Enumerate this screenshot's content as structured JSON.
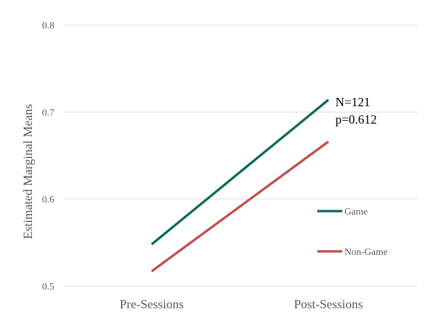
{
  "chart_data": {
    "type": "line",
    "title": "",
    "xlabel": "",
    "ylabel": "Estimated Marginal Means",
    "categories": [
      "Pre-Sessions",
      "Post-Sessions"
    ],
    "series": [
      {
        "name": "Game",
        "values": [
          0.548,
          0.714
        ],
        "color": "#0F6B5C"
      },
      {
        "name": "Non-Game",
        "values": [
          0.517,
          0.666
        ],
        "color": "#C0504D"
      }
    ],
    "ylim": [
      0.5,
      0.8
    ],
    "yticks": [
      "0.5",
      "0.6",
      "0.7",
      "0.8"
    ],
    "grid": true,
    "legend_position": "right",
    "annotations": [
      "N=121",
      "p=0.612"
    ]
  }
}
